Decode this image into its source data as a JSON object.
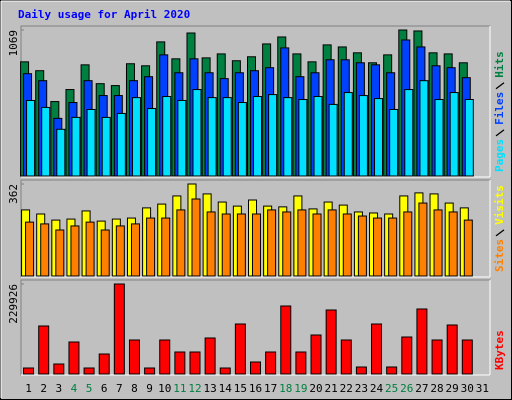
{
  "chart_data": {
    "type": "bar",
    "title": "Daily usage for April 2020",
    "categories": [
      "1",
      "2",
      "3",
      "4",
      "5",
      "6",
      "7",
      "8",
      "9",
      "10",
      "11",
      "12",
      "13",
      "14",
      "15",
      "16",
      "17",
      "18",
      "19",
      "20",
      "21",
      "22",
      "23",
      "24",
      "25",
      "26",
      "27",
      "28",
      "29",
      "30",
      "31"
    ],
    "weekend_categories": [
      "4",
      "5",
      "11",
      "12",
      "18",
      "19",
      "25",
      "26"
    ],
    "weekend_color": "#008040",
    "panels": [
      {
        "ylim": [
          0,
          1069
        ],
        "yticks": [
          1069
        ],
        "series": [
          {
            "name": "Hits",
            "color": "#008040",
            "values": [
              836,
              771,
              545,
              633,
              814,
              676,
              662,
              822,
              807,
              982,
              858,
              1047,
              865,
              894,
              844,
              873,
              967,
              1018,
              894,
              836,
              960,
              945,
              902,
              829,
              887,
              1069,
              1062,
              902,
              894,
              829,
              0
            ]
          },
          {
            "name": "Files",
            "color": "#0040ff",
            "values": [
              749,
              698,
              422,
              538,
              698,
              589,
              589,
              698,
              727,
              887,
              756,
              858,
              756,
              713,
              756,
              771,
              793,
              938,
              727,
              756,
              851,
              851,
              829,
              814,
              756,
              996,
              945,
              807,
              793,
              720,
              0
            ]
          },
          {
            "name": "Pages",
            "color": "#00e0ff",
            "values": [
              553,
              502,
              342,
              429,
              487,
              429,
              458,
              574,
              494,
              582,
              553,
              633,
              574,
              574,
              538,
              582,
              596,
              574,
              560,
              582,
              524,
              611,
              589,
              567,
              487,
              633,
              698,
              560,
              611,
              560,
              0
            ]
          }
        ]
      },
      {
        "ylim": [
          0,
          362
        ],
        "yticks": [
          362
        ],
        "series": [
          {
            "name": "Visits",
            "color": "#ffff00",
            "values": [
              260,
              244,
              220,
              224,
              256,
              216,
              224,
              228,
              268,
              283,
              315,
              362,
              323,
              291,
              275,
              299,
              275,
              272,
              315,
              264,
              291,
              279,
              252,
              248,
              244,
              315,
              327,
              323,
              287,
              268,
              0
            ]
          },
          {
            "name": "Sites",
            "color": "#ff8000",
            "values": [
              212,
              205,
              181,
              197,
              212,
              181,
              197,
              205,
              228,
              228,
              260,
              303,
              252,
              244,
              244,
              244,
              260,
              252,
              260,
              244,
              260,
              244,
              236,
              228,
              228,
              252,
              287,
              260,
              252,
              220,
              0
            ]
          }
        ]
      },
      {
        "ylim": [
          0,
          229926
        ],
        "yticks": [
          229926
        ],
        "series": [
          {
            "name": "KBytes",
            "color": "#ff0000",
            "values": [
              15330,
              122640,
              25550,
              81760,
              15330,
              51100,
              229926,
              86870,
              15330,
              86870,
              56210,
              56210,
              91980,
              15330,
              127750,
              30660,
              56210,
              173740,
              56210,
              99645,
              163520,
              86870,
              17885,
              127750,
              17885,
              94535,
              166075,
              86870,
              125195,
              86870,
              0
            ]
          }
        ]
      }
    ]
  }
}
